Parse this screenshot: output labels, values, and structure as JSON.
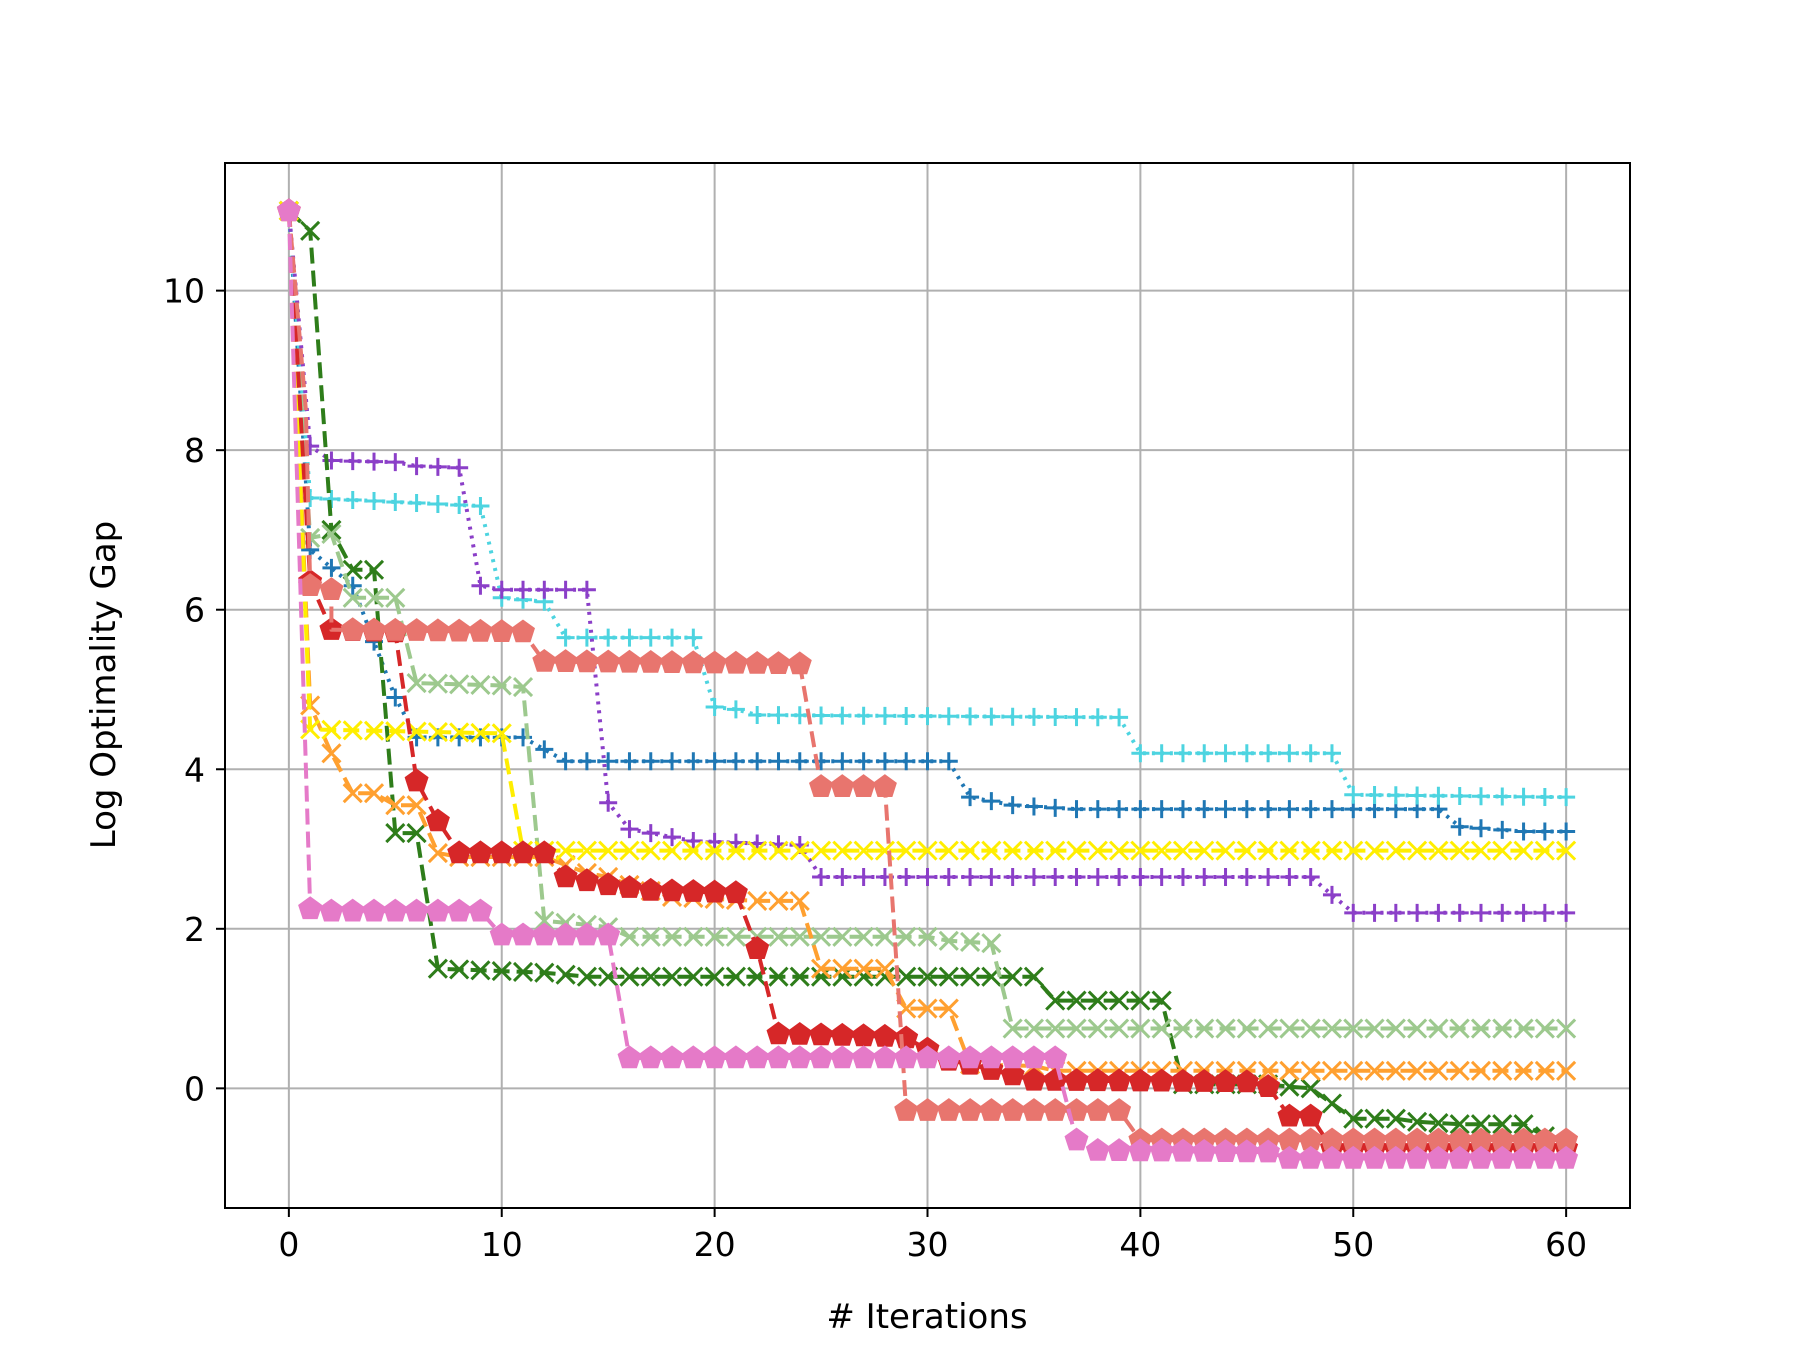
{
  "chart_data": {
    "type": "line",
    "title": "",
    "xlabel": "# Iterations",
    "ylabel": "Log Optimality Gap",
    "xlim": [
      -3,
      63
    ],
    "ylim": [
      -1.5,
      11.6
    ],
    "xticks": [
      0,
      10,
      20,
      30,
      40,
      50,
      60
    ],
    "yticks": [
      0,
      2,
      4,
      6,
      8,
      10
    ],
    "grid": true,
    "legend": "none",
    "series": [
      {
        "color": "#1f77b4",
        "linestyle": "dotted",
        "marker": "plus",
        "points": [
          [
            0,
            11.0
          ],
          [
            1,
            6.75
          ],
          [
            3,
            6.3
          ],
          [
            5,
            4.9
          ],
          [
            6,
            4.4
          ],
          [
            10,
            4.4
          ],
          [
            11,
            4.4
          ],
          [
            13,
            4.1
          ],
          [
            31,
            4.1
          ],
          [
            32,
            3.65
          ],
          [
            34,
            3.55
          ],
          [
            37,
            3.5
          ],
          [
            54,
            3.5
          ],
          [
            55,
            3.28
          ],
          [
            58,
            3.22
          ],
          [
            60,
            3.22
          ]
        ]
      },
      {
        "color": "#4dd4e0",
        "linestyle": "dotted",
        "marker": "plus",
        "points": [
          [
            0,
            11.0
          ],
          [
            1,
            7.4
          ],
          [
            9,
            7.3
          ],
          [
            10,
            6.15
          ],
          [
            12,
            6.1
          ],
          [
            13,
            5.65
          ],
          [
            19,
            5.65
          ],
          [
            20,
            4.78
          ],
          [
            21,
            4.75
          ],
          [
            22,
            4.68
          ],
          [
            39,
            4.65
          ],
          [
            40,
            4.2
          ],
          [
            49,
            4.2
          ],
          [
            50,
            3.68
          ],
          [
            60,
            3.65
          ]
        ]
      },
      {
        "color": "#8b3fc8",
        "linestyle": "dotted",
        "marker": "plus",
        "points": [
          [
            0,
            11.0
          ],
          [
            1,
            8.05
          ],
          [
            2,
            7.87
          ],
          [
            5,
            7.85
          ],
          [
            6,
            7.8
          ],
          [
            8,
            7.78
          ],
          [
            9,
            6.3
          ],
          [
            10,
            6.25
          ],
          [
            14,
            6.25
          ],
          [
            15,
            3.58
          ],
          [
            16,
            3.25
          ],
          [
            18,
            3.15
          ],
          [
            19,
            3.1
          ],
          [
            24,
            3.05
          ],
          [
            25,
            2.65
          ],
          [
            48,
            2.65
          ],
          [
            50,
            2.2
          ],
          [
            60,
            2.2
          ]
        ]
      },
      {
        "color": "#2e7d1a",
        "linestyle": "dashed",
        "marker": "x",
        "points": [
          [
            0,
            11.0
          ],
          [
            1,
            10.75
          ],
          [
            2,
            7.0
          ],
          [
            3,
            6.5
          ],
          [
            4,
            6.5
          ],
          [
            5,
            3.2
          ],
          [
            6,
            3.2
          ],
          [
            7,
            1.5
          ],
          [
            12,
            1.45
          ],
          [
            14,
            1.4
          ],
          [
            35,
            1.4
          ],
          [
            36,
            1.1
          ],
          [
            41,
            1.1
          ],
          [
            42,
            0.05
          ],
          [
            46,
            0.05
          ],
          [
            47,
            0.02
          ],
          [
            48,
            0.0
          ],
          [
            50,
            -0.38
          ],
          [
            52,
            -0.38
          ],
          [
            53,
            -0.42
          ],
          [
            55,
            -0.45
          ],
          [
            58,
            -0.45
          ],
          [
            59,
            -0.6
          ]
        ]
      },
      {
        "color": "#9dc98e",
        "linestyle": "dashed",
        "marker": "x",
        "points": [
          [
            0,
            11.0
          ],
          [
            1,
            6.9
          ],
          [
            2,
            6.95
          ],
          [
            3,
            6.15
          ],
          [
            4,
            6.15
          ],
          [
            5,
            6.15
          ],
          [
            6,
            5.08
          ],
          [
            10,
            5.05
          ],
          [
            11,
            5.03
          ],
          [
            12,
            2.1
          ],
          [
            14,
            2.05
          ],
          [
            15,
            2.02
          ],
          [
            16,
            1.9
          ],
          [
            30,
            1.9
          ],
          [
            31,
            1.85
          ],
          [
            33,
            1.82
          ],
          [
            34,
            0.75
          ],
          [
            60,
            0.75
          ]
        ]
      },
      {
        "color": "#ffa030",
        "linestyle": "dashed",
        "marker": "x",
        "points": [
          [
            0,
            11.0
          ],
          [
            1,
            4.8
          ],
          [
            2,
            4.2
          ],
          [
            3,
            3.7
          ],
          [
            4,
            3.7
          ],
          [
            5,
            3.55
          ],
          [
            6,
            3.55
          ],
          [
            7,
            2.95
          ],
          [
            8,
            2.9
          ],
          [
            12,
            2.9
          ],
          [
            14,
            2.7
          ],
          [
            15,
            2.65
          ],
          [
            16,
            2.55
          ],
          [
            18,
            2.4
          ],
          [
            22,
            2.35
          ],
          [
            24,
            2.35
          ],
          [
            25,
            1.5
          ],
          [
            28,
            1.5
          ],
          [
            29,
            1.0
          ],
          [
            31,
            1.0
          ],
          [
            32,
            0.3
          ],
          [
            35,
            0.28
          ],
          [
            36,
            0.22
          ],
          [
            60,
            0.22
          ]
        ]
      },
      {
        "color": "#ffee00",
        "linestyle": "dashed",
        "marker": "x",
        "points": [
          [
            0,
            11.0
          ],
          [
            1,
            4.5
          ],
          [
            10,
            4.45
          ],
          [
            11,
            2.98
          ],
          [
            12,
            2.98
          ],
          [
            60,
            2.98
          ]
        ]
      },
      {
        "color": "#d62728",
        "linestyle": "dashed",
        "marker": "pentagon",
        "points": [
          [
            0,
            11.0
          ],
          [
            1,
            6.35
          ],
          [
            2,
            5.75
          ],
          [
            5,
            5.72
          ],
          [
            6,
            3.85
          ],
          [
            7,
            3.35
          ],
          [
            8,
            2.95
          ],
          [
            12,
            2.95
          ],
          [
            13,
            2.65
          ],
          [
            15,
            2.55
          ],
          [
            17,
            2.48
          ],
          [
            21,
            2.45
          ],
          [
            22,
            1.75
          ],
          [
            23,
            0.68
          ],
          [
            28,
            0.65
          ],
          [
            29,
            0.63
          ],
          [
            31,
            0.35
          ],
          [
            32,
            0.3
          ],
          [
            35,
            0.1
          ],
          [
            45,
            0.08
          ],
          [
            46,
            0.02
          ],
          [
            47,
            -0.35
          ],
          [
            48,
            -0.35
          ],
          [
            49,
            -0.75
          ],
          [
            60,
            -0.75
          ]
        ]
      },
      {
        "color": "#e8756e",
        "linestyle": "dashed",
        "marker": "pentagon",
        "points": [
          [
            0,
            11.0
          ],
          [
            0.8,
            8.5
          ],
          [
            1,
            6.3
          ],
          [
            2,
            6.25
          ],
          [
            2,
            5.75
          ],
          [
            11,
            5.72
          ],
          [
            12,
            5.35
          ],
          [
            24,
            5.32
          ],
          [
            25,
            3.78
          ],
          [
            28,
            3.78
          ],
          [
            29,
            -0.28
          ],
          [
            39,
            -0.28
          ],
          [
            40,
            -0.65
          ],
          [
            60,
            -0.65
          ]
        ]
      },
      {
        "color": "#e57ac8",
        "linestyle": "dashed",
        "marker": "pentagon",
        "points": [
          [
            0,
            11.0
          ],
          [
            1,
            2.25
          ],
          [
            2,
            2.22
          ],
          [
            9,
            2.22
          ],
          [
            10,
            1.92
          ],
          [
            15,
            1.92
          ],
          [
            16,
            0.38
          ],
          [
            36,
            0.38
          ],
          [
            37,
            -0.65
          ],
          [
            38,
            -0.78
          ],
          [
            46,
            -0.8
          ],
          [
            47,
            -0.88
          ],
          [
            60,
            -0.88
          ]
        ]
      }
    ]
  }
}
